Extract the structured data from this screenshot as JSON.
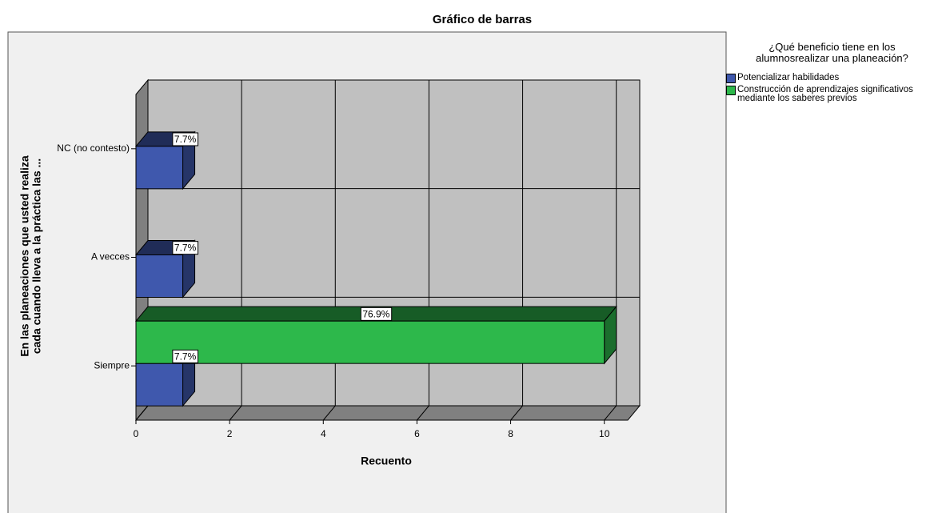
{
  "chart_data": {
    "type": "bar3d-horizontal",
    "title": "Gráfico de barras",
    "xlabel": "Recuento",
    "ylabel": [
      "En las planeaciones que usted realiza",
      "cada cuando lleva a la práctica las ..."
    ],
    "legend_title": [
      "¿Qué beneficio tiene en los",
      "alumnosrealizar una planeación?"
    ],
    "categories": [
      "NC (no contesto)",
      "A vecces",
      "Siempre"
    ],
    "series": [
      {
        "name": "Potencializar habilidades",
        "color": "#3f58ad",
        "values": [
          1,
          1,
          1
        ],
        "value_labels": [
          "7.7%",
          "7.7%",
          "7.7%"
        ]
      },
      {
        "name": "Construcción de aprendizajes significativos mediante los saberes previos",
        "color": "#2db84b",
        "values": [
          null,
          null,
          10
        ],
        "value_labels": [
          null,
          null,
          "76.9%"
        ]
      }
    ],
    "xlim": [
      0,
      10.5
    ],
    "xticks": [
      0,
      2,
      4,
      6,
      8,
      10
    ],
    "grid": true
  }
}
